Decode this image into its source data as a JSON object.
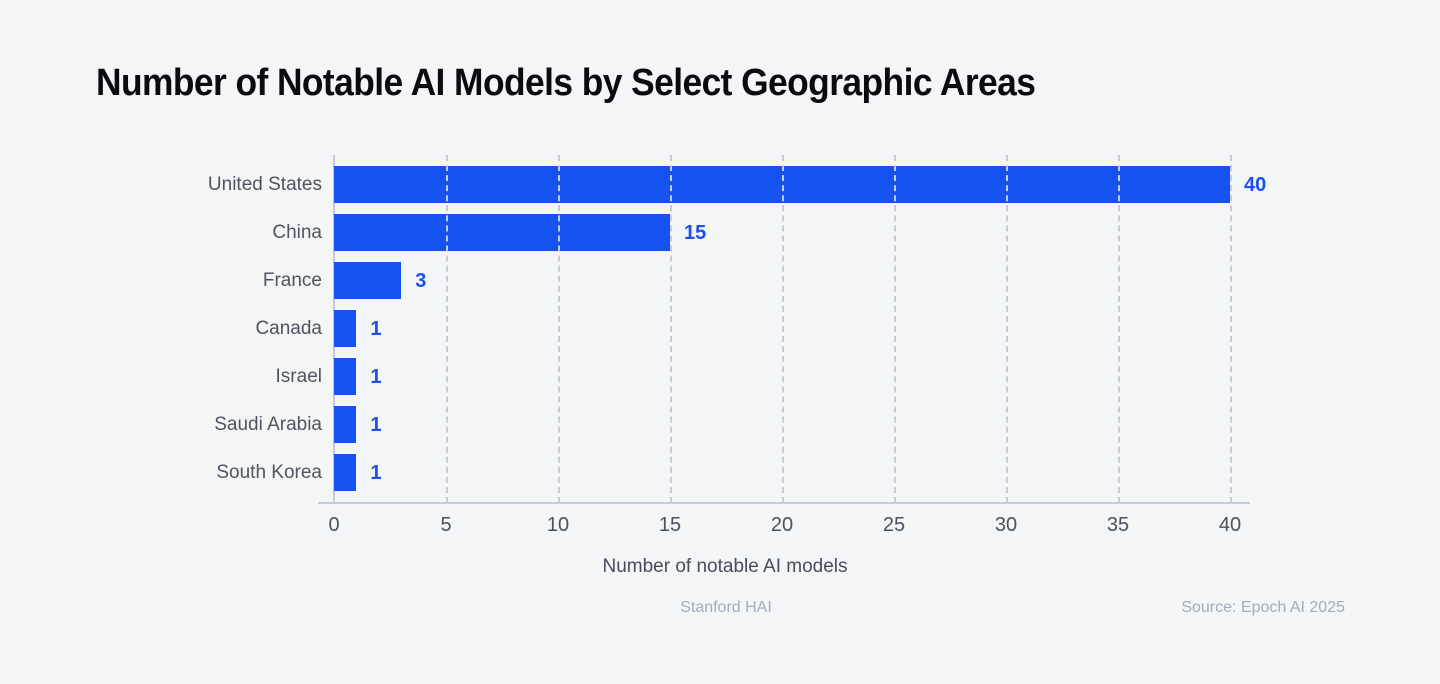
{
  "title": "Number of Notable AI Models by Select Geographic Areas",
  "chart_data": {
    "type": "bar",
    "orientation": "horizontal",
    "title": "Number of Notable AI Models by Select Geographic Areas",
    "categories": [
      "United States",
      "China",
      "France",
      "Canada",
      "Israel",
      "Saudi Arabia",
      "South Korea"
    ],
    "values": [
      40,
      15,
      3,
      1,
      1,
      1,
      1
    ],
    "value_labels": [
      "40",
      "15",
      "3",
      "1",
      "1",
      "1",
      "1"
    ],
    "xlabel": "Number of notable AI models",
    "ylabel": "",
    "xlim": [
      0,
      40
    ],
    "xticks": [
      0,
      5,
      10,
      15,
      20,
      25,
      30,
      35,
      40
    ],
    "grid": "vertical-dashed",
    "legend": "none"
  },
  "footer": {
    "brand": "Stanford HAI",
    "source": "Source: Epoch AI 2025"
  },
  "colors": {
    "background": "#F4F5F7",
    "bar": "#1652F0",
    "value_label": "#1C50EC",
    "category_label": "#4B5563",
    "tick_label": "#4A5160",
    "gridline": "#C6CBD5",
    "axis_line": "#C6CBD5",
    "axis_title": "#454C5C",
    "footer_text": "#A4ABBA",
    "title_text": "#0B0B0F"
  }
}
